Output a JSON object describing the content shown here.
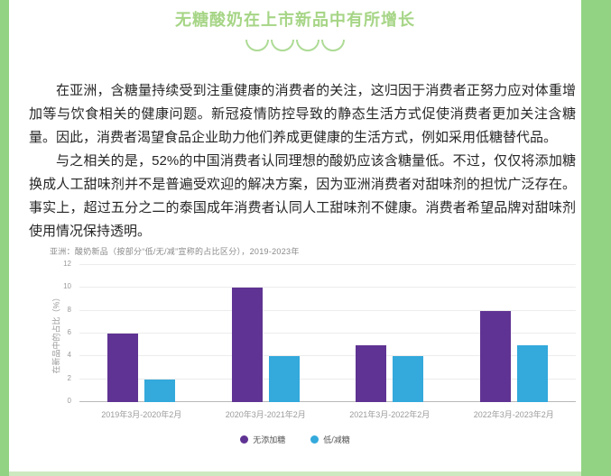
{
  "page": {
    "title": "无糖酸奶在上市新品中有所增长",
    "colors": {
      "border_green": "#92d383",
      "title_green": "#a6d586",
      "arc_green": "#aedb96",
      "bottom_band": "#cde9c0"
    }
  },
  "article": {
    "paragraphs": [
      "在亚洲，含糖量持续受到注重健康的消费者的关注，这归因于消费者正努力应对体重增加等与饮食相关的健康问题。新冠疫情防控导致的静态生活方式促使消费者更加关注含糖量。因此，消费者渴望食品企业助力他们养成更健康的生活方式，例如采用低糖替代品。",
      "与之相关的是，52%的中国消费者认同理想的酸奶应该含糖量低。不过，仅仅将添加糖换成人工甜味剂并不是普遍受欢迎的解决方案，因为亚洲消费者对甜味剂的担忧广泛存在。事实上，超过五分之二的泰国成年消费者认同人工甜味剂不健康。消费者希望品牌对甜味剂使用情况保持透明。"
    ]
  },
  "chart_data": {
    "type": "bar",
    "title": "亚洲：酸奶新品（按部分“低/无/减”宣称的占比区分），2019-2023年",
    "xlabel": "",
    "ylabel": "在新品中的占比（%）",
    "ylim": [
      0,
      12
    ],
    "yticks": [
      0,
      2,
      4,
      6,
      8,
      10,
      12
    ],
    "grid": true,
    "legend_position": "bottom",
    "categories": [
      "2019年3月-2020年2月",
      "2020年3月-2021年2月",
      "2021年3月-2022年2月",
      "2022年3月-2023年2月"
    ],
    "series": [
      {
        "name": "无添加糖",
        "color": "#5f3393",
        "values": [
          6,
          10,
          5,
          8
        ]
      },
      {
        "name": "低/减糖",
        "color": "#33a9dc",
        "values": [
          2,
          4,
          4,
          5
        ]
      }
    ]
  }
}
